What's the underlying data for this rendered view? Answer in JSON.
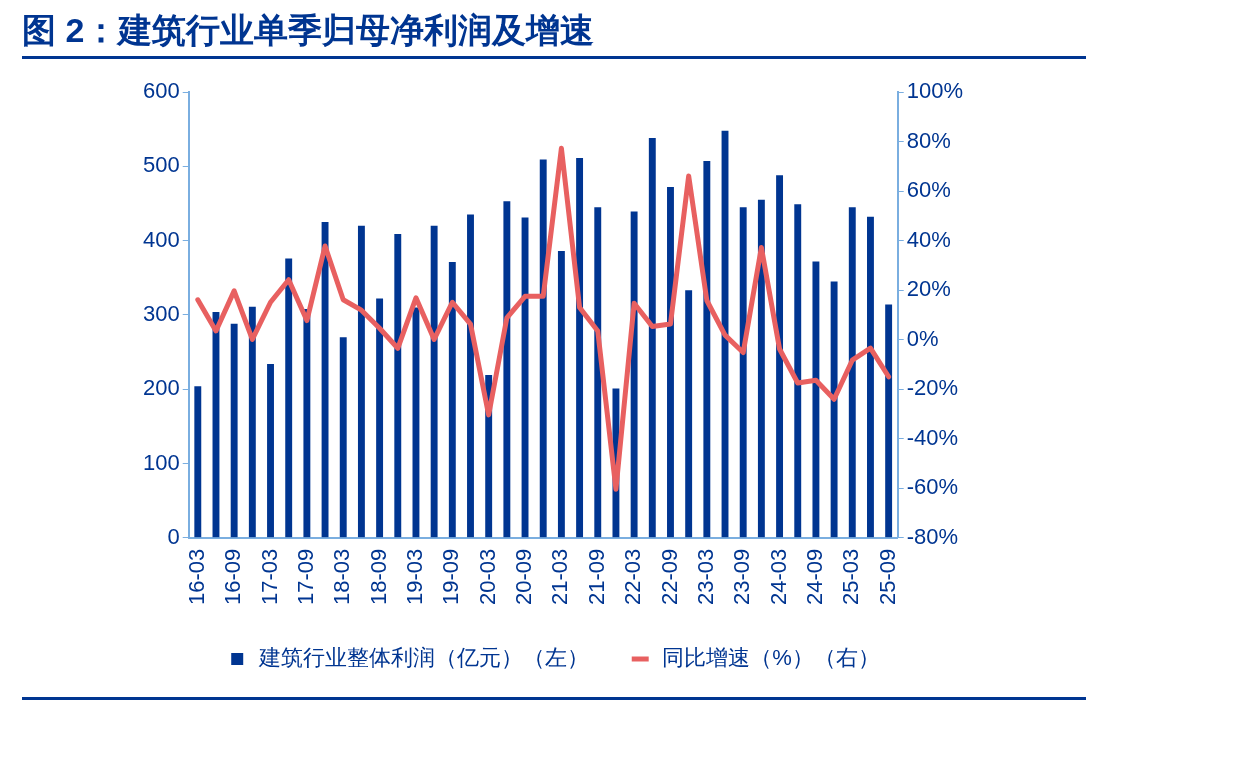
{
  "chart_data": {
    "type": "bar",
    "title": "图 2：建筑行业单季归母净利润及增速",
    "categories": [
      "16-03",
      null,
      "16-09",
      null,
      "17-03",
      null,
      "17-09",
      null,
      "18-03",
      null,
      "18-09",
      null,
      "19-03",
      null,
      "19-09",
      null,
      "20-03",
      null,
      "20-09",
      null,
      "21-03",
      null,
      "21-09",
      null,
      "22-03",
      null,
      "22-09",
      null,
      "23-03",
      null,
      "23-09",
      null,
      "24-03",
      null,
      "24-09",
      null,
      "25-03",
      null,
      "25-09"
    ],
    "series": [
      {
        "name": "建筑行业整体利润（亿元）（左）",
        "color": "#003591",
        "values": [
          204,
          304,
          288,
          311,
          234,
          376,
          308,
          425,
          270,
          420,
          322,
          409,
          310,
          420,
          371,
          435,
          219,
          453,
          431,
          509,
          386,
          511,
          445,
          201,
          439,
          538,
          472,
          333,
          507,
          548,
          445,
          455,
          488,
          449,
          372,
          345,
          445,
          432,
          314
        ]
      },
      {
        "name": "同比增速（%）（右）",
        "type": "line",
        "axis": "y2",
        "color": "#e86060",
        "marker": "none",
        "line_style": "solid",
        "values": [
          16.1,
          3.5,
          19.7,
          0.1,
          15.1,
          24.2,
          7.7,
          37.8,
          16.1,
          11.9,
          4.6,
          -3.5,
          16.9,
          0.1,
          15.1,
          6.3,
          -30.4,
          8.8,
          17.5,
          17.5,
          77.3,
          13,
          3.5,
          -60.4,
          14.7,
          5.3,
          6.3,
          66.1,
          15.8,
          1.8,
          -5.2,
          37.2,
          -3.8,
          -17.5,
          -16.4,
          -24.1,
          -8.3,
          -3.4,
          -15
        ]
      }
    ],
    "ylim": [
      0,
      600
    ],
    "yticks": [
      0,
      100,
      200,
      300,
      400,
      500,
      600
    ],
    "y2lim": [
      -80,
      100
    ],
    "y2ticks": [
      {
        "value": -80,
        "label": "-80%"
      },
      {
        "value": -60,
        "label": "-60%"
      },
      {
        "value": -40,
        "label": "-40%"
      },
      {
        "value": -20,
        "label": "-20%"
      },
      {
        "value": 0,
        "label": "0%"
      },
      {
        "value": 20,
        "label": "20%"
      },
      {
        "value": 40,
        "label": "40%"
      },
      {
        "value": 60,
        "label": "60%"
      },
      {
        "value": 80,
        "label": "80%"
      },
      {
        "value": 100,
        "label": "100%"
      }
    ],
    "grid": false,
    "legend": "bottom"
  }
}
